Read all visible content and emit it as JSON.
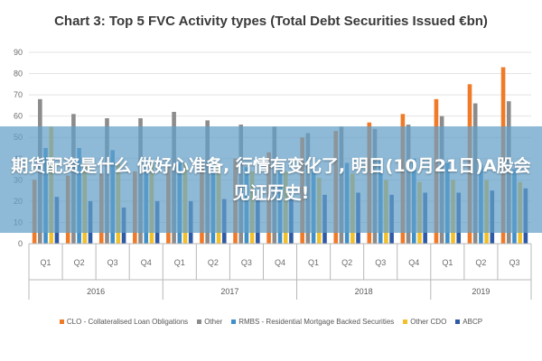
{
  "overlay": {
    "text": "期货配资是什么 做好心准备, 行情有变化了, 明日(10月21日)A股会见证历史!"
  },
  "colors": {
    "CLO": "#f07a28",
    "Other": "#8c8c8c",
    "RMBS": "#3f8fc9",
    "OtherCDO": "#f2c02a",
    "ABCP": "#2f5aa6",
    "grid": "#e3e3e3",
    "axis": "#b8b8b8"
  },
  "chart_data": {
    "type": "bar",
    "title": "Chart 3: Top 5 FVC Activity types (Total Debt Securities Issued €bn)",
    "xlabel": "",
    "ylabel": "",
    "ylim": [
      0,
      90
    ],
    "yticks": [
      0,
      10,
      20,
      30,
      40,
      50,
      60,
      70,
      80,
      90
    ],
    "grid": true,
    "legend_position": "bottom",
    "categories": [
      "Q1",
      "Q2",
      "Q3",
      "Q4",
      "Q1",
      "Q2",
      "Q3",
      "Q4",
      "Q1",
      "Q2",
      "Q3",
      "Q4",
      "Q1",
      "Q2",
      "Q3"
    ],
    "groups": [
      {
        "label": "2016",
        "count": 4
      },
      {
        "label": "2017",
        "count": 4
      },
      {
        "label": "2018",
        "count": 4
      },
      {
        "label": "2019",
        "count": 3
      }
    ],
    "series": [
      {
        "name": "CLO - Collateralised Loan Obligations",
        "key": "CLO",
        "values": [
          30,
          32,
          33,
          34,
          36,
          38,
          40,
          43,
          50,
          53,
          57,
          61,
          68,
          75,
          83
        ]
      },
      {
        "name": "Other",
        "key": "Other",
        "values": [
          68,
          61,
          59,
          59,
          62,
          58,
          56,
          55,
          52,
          55,
          54,
          56,
          60,
          66,
          67
        ]
      },
      {
        "name": "RMBS - Residential Mortgage Backed Securities",
        "key": "RMBS",
        "values": [
          45,
          45,
          44,
          40,
          38,
          37,
          36,
          37,
          35,
          38,
          39,
          40,
          38,
          37,
          35
        ]
      },
      {
        "name": "Other CDO",
        "key": "OtherCDO",
        "values": [
          55,
          40,
          38,
          38,
          38,
          36,
          34,
          34,
          31,
          33,
          30,
          29,
          30,
          30,
          29
        ]
      },
      {
        "name": "ABCP",
        "key": "ABCP",
        "values": [
          22,
          20,
          17,
          20,
          20,
          21,
          22,
          22,
          23,
          24,
          23,
          24,
          24,
          25,
          26
        ]
      }
    ]
  }
}
